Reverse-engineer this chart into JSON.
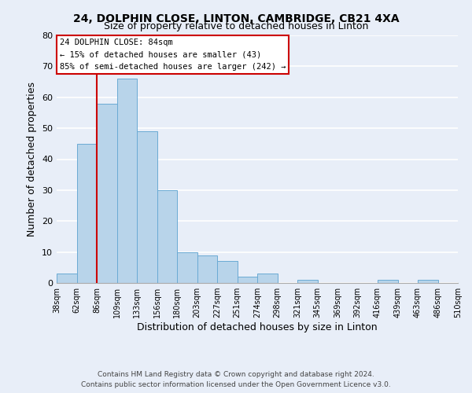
{
  "title1": "24, DOLPHIN CLOSE, LINTON, CAMBRIDGE, CB21 4XA",
  "title2": "Size of property relative to detached houses in Linton",
  "xlabel": "Distribution of detached houses by size in Linton",
  "ylabel": "Number of detached properties",
  "bar_values": [
    3,
    45,
    58,
    66,
    49,
    30,
    10,
    9,
    7,
    2,
    3,
    0,
    1,
    0,
    0,
    0,
    1,
    0,
    1,
    0
  ],
  "bar_labels": [
    "38sqm",
    "62sqm",
    "86sqm",
    "109sqm",
    "133sqm",
    "156sqm",
    "180sqm",
    "203sqm",
    "227sqm",
    "251sqm",
    "274sqm",
    "298sqm",
    "321sqm",
    "345sqm",
    "369sqm",
    "392sqm",
    "416sqm",
    "439sqm",
    "463sqm",
    "486sqm"
  ],
  "last_label": "510sqm",
  "bar_color": "#b8d4ea",
  "bar_edge_color": "#6aaad4",
  "background_color": "#e8eef8",
  "grid_color": "#ffffff",
  "vline_x": 2,
  "vline_color": "#cc0000",
  "annotation_title": "24 DOLPHIN CLOSE: 84sqm",
  "annotation_line1": "← 15% of detached houses are smaller (43)",
  "annotation_line2": "85% of semi-detached houses are larger (242) →",
  "annotation_box_color": "#ffffff",
  "annotation_border_color": "#cc0000",
  "ylim": [
    0,
    80
  ],
  "yticks": [
    0,
    10,
    20,
    30,
    40,
    50,
    60,
    70,
    80
  ],
  "footer1": "Contains HM Land Registry data © Crown copyright and database right 2024.",
  "footer2": "Contains public sector information licensed under the Open Government Licence v3.0."
}
